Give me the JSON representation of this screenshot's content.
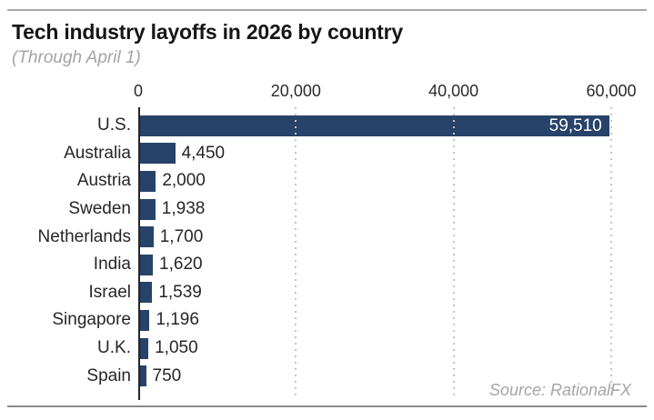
{
  "header": {
    "title": "Tech industry layoffs in 2026 by country",
    "subtitle": "(Through April 1)"
  },
  "source": "Source: RationalFX",
  "colors": {
    "bar": "#274369",
    "grid": "#c4c4c4",
    "axis": "#262626",
    "value_inside": "#ffffff",
    "value_outside": "#262626",
    "rule_top": "#a9a9a9",
    "rule_bottom": "#8c8c8c"
  },
  "chart_data": {
    "type": "bar",
    "orientation": "horizontal",
    "title": "Tech industry layoffs in 2026 by country",
    "subtitle": "(Through April 1)",
    "categories": [
      "U.S.",
      "Australia",
      "Austria",
      "Sweden",
      "Netherlands",
      "India",
      "Israel",
      "Singapore",
      "U.K.",
      "Spain"
    ],
    "values": [
      59510,
      4450,
      2000,
      1938,
      1700,
      1620,
      1539,
      1196,
      1050,
      750
    ],
    "value_labels": [
      "59,510",
      "4,450",
      "2,000",
      "1,938",
      "1,700",
      "1,620",
      "1,539",
      "1,196",
      "1,050",
      "750"
    ],
    "xlim": [
      0,
      60000
    ],
    "x_ticks": [
      {
        "value": 0,
        "label": "0"
      },
      {
        "value": 20000,
        "label": "20,000"
      },
      {
        "value": 40000,
        "label": "40,000"
      },
      {
        "value": 60000,
        "label": "60,000"
      }
    ],
    "grid": "vertical-dotted",
    "legend": "none",
    "value_label_inside_threshold": 0.5
  }
}
